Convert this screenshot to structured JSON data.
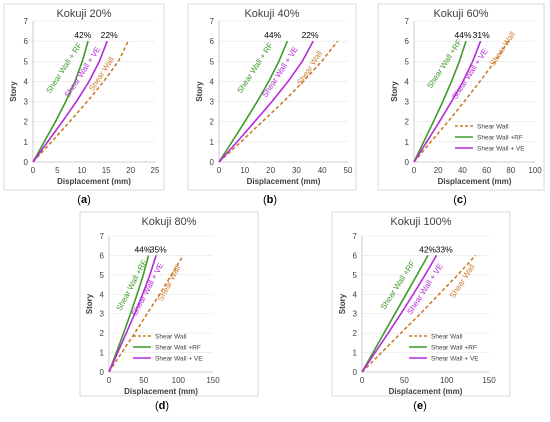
{
  "colors": {
    "shear_wall": "#c97d2b",
    "shear_wall_rf": "#3f9a2b",
    "shear_wall_ve": "#b62ad8"
  },
  "chart_data": [
    {
      "type": "line",
      "title": "Kokuji 20%",
      "panel_letter": "a",
      "xlabel": "Displacement (mm)",
      "ylabel": "Story",
      "xlim": [
        0,
        25
      ],
      "ylim": [
        0,
        7
      ],
      "xticks": [
        0,
        5,
        10,
        15,
        20,
        25
      ],
      "yticks": [
        0,
        1,
        2,
        3,
        4,
        5,
        6,
        7
      ],
      "legend": false,
      "annotations": [
        "42%",
        "22%"
      ],
      "series": [
        {
          "name": "Shear Wall",
          "style": "dashed",
          "x": [
            0,
            3.8,
            7.5,
            11.1,
            14.5,
            17.5,
            19.5
          ],
          "y": [
            0,
            1,
            2,
            3,
            4,
            5,
            6
          ]
        },
        {
          "name": "Shear Wall + RF",
          "style": "solid",
          "x": [
            0,
            2.3,
            4.6,
            6.7,
            8.6,
            10.1,
            11.3
          ],
          "y": [
            0,
            1,
            2,
            3,
            4,
            5,
            6
          ]
        },
        {
          "name": "Shear Wall + VE",
          "style": "solid",
          "x": [
            0,
            3.0,
            6.0,
            8.9,
            11.5,
            13.6,
            15.2
          ],
          "y": [
            0,
            1,
            2,
            3,
            4,
            5,
            6
          ]
        }
      ]
    },
    {
      "type": "line",
      "title": "Kokuji 40%",
      "panel_letter": "b",
      "xlabel": "Displacement (mm)",
      "ylabel": "Story",
      "xlim": [
        0,
        50
      ],
      "ylim": [
        0,
        7
      ],
      "xticks": [
        0,
        10,
        20,
        30,
        40,
        50
      ],
      "yticks": [
        0,
        1,
        2,
        3,
        4,
        5,
        6,
        7
      ],
      "legend": false,
      "annotations": [
        "44%",
        "22%"
      ],
      "series": [
        {
          "name": "Shear Wall",
          "style": "dashed",
          "x": [
            0,
            8.5,
            16.8,
            25,
            32.7,
            39.8,
            46
          ],
          "y": [
            0,
            1,
            2,
            3,
            4,
            5,
            6
          ]
        },
        {
          "name": "Shear Wall + RF",
          "style": "solid",
          "x": [
            0,
            5,
            10,
            14.8,
            19.3,
            23.2,
            26.5
          ],
          "y": [
            0,
            1,
            2,
            3,
            4,
            5,
            6
          ]
        },
        {
          "name": "Shear Wall + VE",
          "style": "solid",
          "x": [
            0,
            7,
            13.8,
            20.5,
            26.8,
            32.3,
            36.5
          ],
          "y": [
            0,
            1,
            2,
            3,
            4,
            5,
            6
          ]
        }
      ]
    },
    {
      "type": "line",
      "title": "Kokuji 60%",
      "panel_letter": "c",
      "xlabel": "Displacement (mm)",
      "ylabel": "Story",
      "xlim": [
        0,
        100
      ],
      "ylim": [
        0,
        7
      ],
      "xticks": [
        0,
        20,
        40,
        60,
        80,
        100
      ],
      "yticks": [
        0,
        1,
        2,
        3,
        4,
        5,
        6,
        7
      ],
      "legend": true,
      "legend_position": "bottom-right",
      "annotations": [
        "44%",
        "31%"
      ],
      "series": [
        {
          "name": "Shear Wall",
          "style": "dashed",
          "x": [
            0,
            14,
            28,
            41.5,
            54.5,
            67,
            78
          ],
          "y": [
            0,
            1,
            2,
            3,
            4,
            5,
            6
          ]
        },
        {
          "name": "Shear Wall +RF",
          "style": "solid",
          "x": [
            0,
            8,
            16,
            23.8,
            31,
            37.5,
            43
          ],
          "y": [
            0,
            1,
            2,
            3,
            4,
            5,
            6
          ]
        },
        {
          "name": "Shear Wall + VE",
          "style": "solid",
          "x": [
            0,
            10.5,
            21,
            31,
            40.5,
            48.5,
            55
          ],
          "y": [
            0,
            1,
            2,
            3,
            4,
            5,
            6
          ]
        }
      ]
    },
    {
      "type": "line",
      "title": "Kokuji 80%",
      "panel_letter": "d",
      "xlabel": "Displacement (mm)",
      "ylabel": "Story",
      "xlim": [
        0,
        150
      ],
      "ylim": [
        0,
        7
      ],
      "xticks": [
        0,
        50,
        100,
        150
      ],
      "yticks": [
        0,
        1,
        2,
        3,
        4,
        5,
        6,
        7
      ],
      "legend": true,
      "legend_position": "bottom-right",
      "annotations": [
        "44%",
        "35%"
      ],
      "series": [
        {
          "name": "Shear Wall",
          "style": "dashed",
          "x": [
            0,
            18.5,
            37,
            55,
            73,
            90,
            107
          ],
          "y": [
            0,
            1,
            2,
            3,
            4,
            5,
            6
          ]
        },
        {
          "name": "Shear Wall +RF",
          "style": "solid",
          "x": [
            0,
            10.5,
            21,
            31,
            40.5,
            49.5,
            57
          ],
          "y": [
            0,
            1,
            2,
            3,
            4,
            5,
            6
          ]
        },
        {
          "name": "Shear Wall + VE",
          "style": "solid",
          "x": [
            0,
            12.5,
            25,
            37,
            48.5,
            59,
            68
          ],
          "y": [
            0,
            1,
            2,
            3,
            4,
            5,
            6
          ]
        }
      ]
    },
    {
      "type": "line",
      "title": "Kokuji 100%",
      "panel_letter": "e",
      "xlabel": "Displacement (mm)",
      "ylabel": "Story",
      "xlim": [
        0,
        150
      ],
      "ylim": [
        0,
        7
      ],
      "xticks": [
        0,
        50,
        100,
        150
      ],
      "yticks": [
        0,
        1,
        2,
        3,
        4,
        5,
        6,
        7
      ],
      "legend": true,
      "legend_position": "bottom-right",
      "annotations": [
        "42%",
        "33%"
      ],
      "series": [
        {
          "name": "Shear Wall",
          "style": "dashed",
          "x": [
            0,
            23,
            46,
            69,
            91,
            113,
            134
          ],
          "y": [
            0,
            1,
            2,
            3,
            4,
            5,
            6
          ]
        },
        {
          "name": "Shear Wall +RF",
          "style": "solid",
          "x": [
            0,
            13,
            26,
            39,
            52,
            65,
            78
          ],
          "y": [
            0,
            1,
            2,
            3,
            4,
            5,
            6
          ]
        },
        {
          "name": "Shear Wall + VE",
          "style": "solid",
          "x": [
            0,
            15.5,
            31,
            46,
            60.5,
            74.5,
            88
          ],
          "y": [
            0,
            1,
            2,
            3,
            4,
            5,
            6
          ]
        }
      ]
    }
  ]
}
